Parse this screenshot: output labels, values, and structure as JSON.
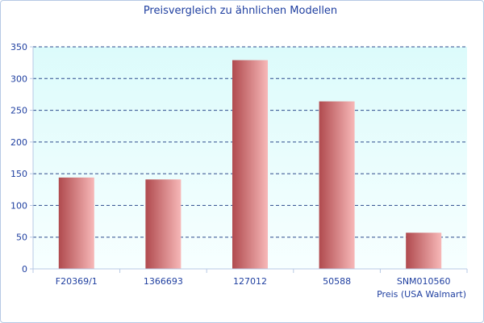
{
  "colors": {
    "title": "#1f3fa0",
    "axis_text": "#1f3fa0",
    "plot_bg_top": "#dcfbfb",
    "plot_bg_bottom": "#f7ffff",
    "grid": "#2c4a8c",
    "bar_dark": "#b04a4e",
    "bar_light": "#f7b8b8",
    "axis_line": "#b7c9e4"
  },
  "chart_data": {
    "type": "bar",
    "title": "Preisvergleich zu ähnlichen Modellen",
    "xlabel": "Preis (USA Walmart)",
    "ylabel": "",
    "categories": [
      "F20369/1",
      "1366693",
      "127012",
      "50588",
      "SNM010560"
    ],
    "values": [
      144,
      141,
      329,
      264,
      57
    ],
    "ylim": [
      0,
      350
    ],
    "yticks": [
      0,
      50,
      100,
      150,
      200,
      250,
      300,
      350
    ],
    "grid": true,
    "legend": "none"
  }
}
